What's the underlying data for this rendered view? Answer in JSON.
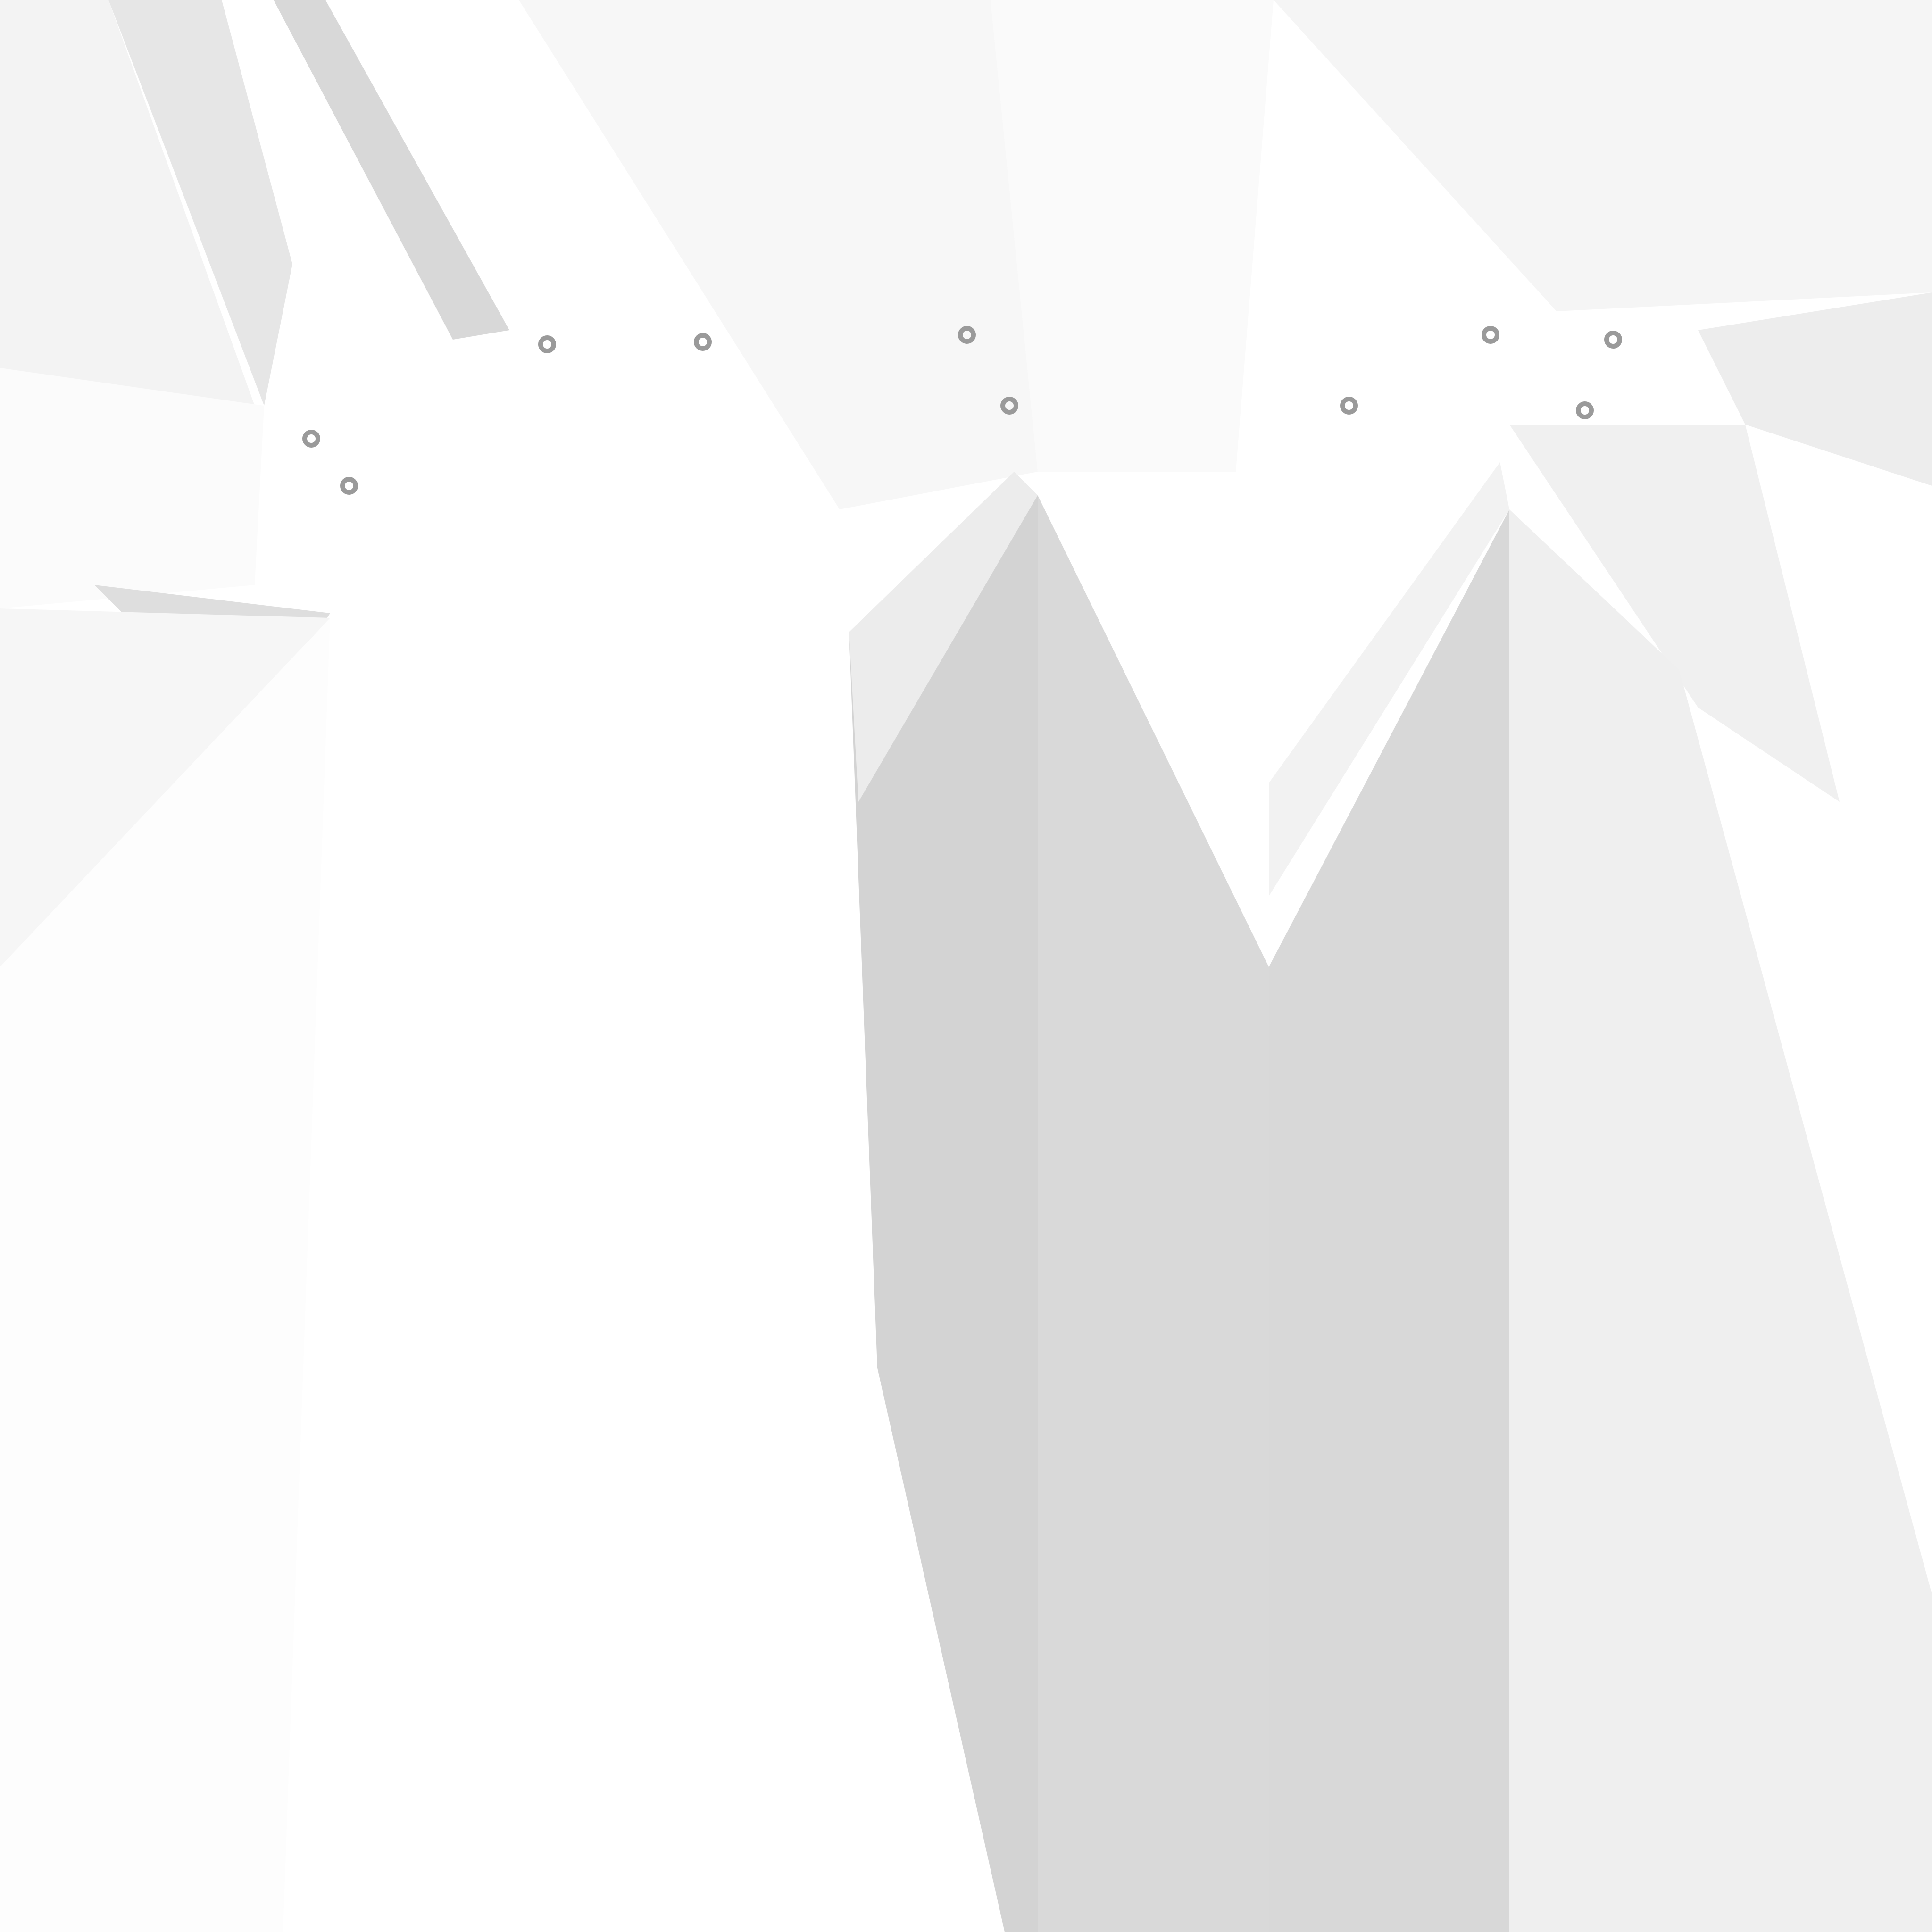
{
  "colors": {
    "background": "#ffffff",
    "facet_lightest": "#fbfbfb",
    "facet_light": "#f3f3f3",
    "facet_mid": "#e9e9e9",
    "facet_shade": "#dcdcdc",
    "facet_dark": "#d3d3d3",
    "glyph_grey": "#9a9a9a"
  }
}
